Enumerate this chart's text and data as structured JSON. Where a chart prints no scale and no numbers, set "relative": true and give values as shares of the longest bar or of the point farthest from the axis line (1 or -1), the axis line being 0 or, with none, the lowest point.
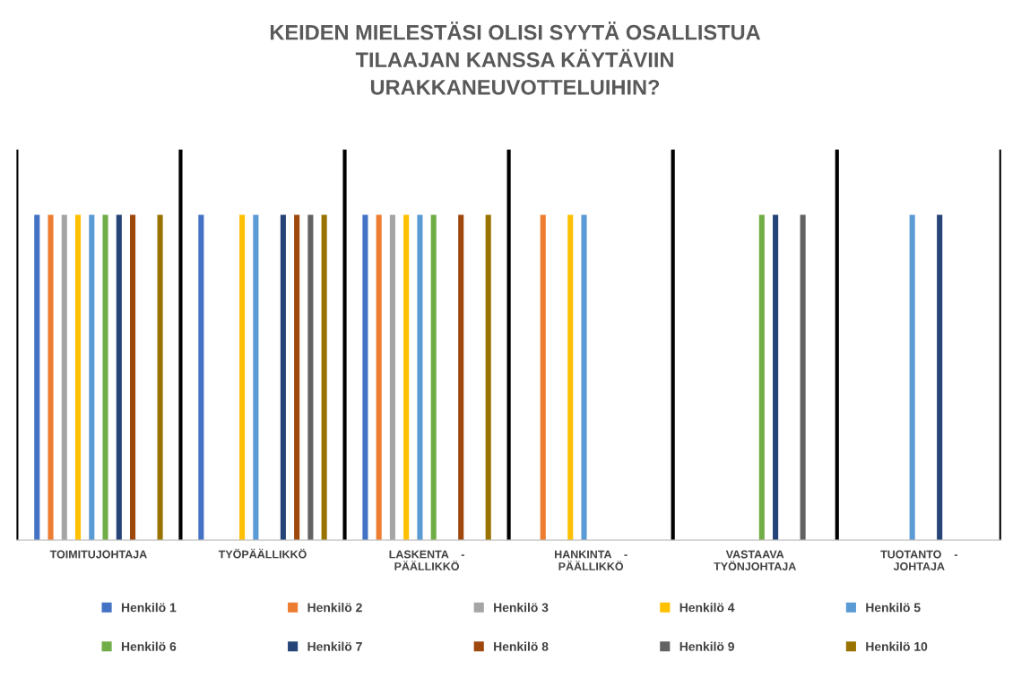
{
  "chart_data": {
    "type": "bar",
    "title": "KEIDEN MIELESTÄSI OLISI SYYTÄ OSALLISTUA\nTILAAJAN KANSSA KÄYTÄVIIN\nURAKKANEUVOTTELUIHIN?",
    "categories": [
      "TOIMITUJOHTAJA",
      "TYÖPÄÄLLIKKÖ",
      "LASKENTA    -\nPÄÄLLIKKÖ",
      "HANKINTA    -\nPÄÄLLIKKÖ",
      "VASTAAVA\nTYÖNJOHTAJA",
      "TUOTANTO    -\nJOHTAJA"
    ],
    "relative": true,
    "grid": "x",
    "legend": "bottom",
    "series": [
      {
        "name": "Henkilö 1",
        "color": "#4472c4",
        "values": [
          1,
          1,
          1,
          0,
          0,
          0
        ]
      },
      {
        "name": "Henkilö 2",
        "color": "#ed7d31",
        "values": [
          1,
          0,
          1,
          1,
          0,
          0
        ]
      },
      {
        "name": "Henkilö 3",
        "color": "#a5a5a5",
        "values": [
          1,
          0,
          1,
          0,
          0,
          0
        ]
      },
      {
        "name": "Henkilö 4",
        "color": "#ffc000",
        "values": [
          1,
          1,
          1,
          1,
          0,
          0
        ]
      },
      {
        "name": "Henkilö 5",
        "color": "#5b9bd5",
        "values": [
          1,
          1,
          1,
          1,
          0,
          1
        ]
      },
      {
        "name": "Henkilö 6",
        "color": "#70ad47",
        "values": [
          1,
          0,
          1,
          0,
          1,
          0
        ]
      },
      {
        "name": "Henkilö 7",
        "color": "#264478",
        "values": [
          1,
          1,
          0,
          0,
          1,
          1
        ]
      },
      {
        "name": "Henkilö 8",
        "color": "#9e480e",
        "values": [
          1,
          1,
          1,
          0,
          0,
          0
        ]
      },
      {
        "name": "Henkilö 9",
        "color": "#636363",
        "values": [
          0,
          1,
          0,
          0,
          1,
          0
        ]
      },
      {
        "name": "Henkilö 10",
        "color": "#997300",
        "values": [
          1,
          1,
          1,
          0,
          0,
          0
        ]
      }
    ]
  }
}
